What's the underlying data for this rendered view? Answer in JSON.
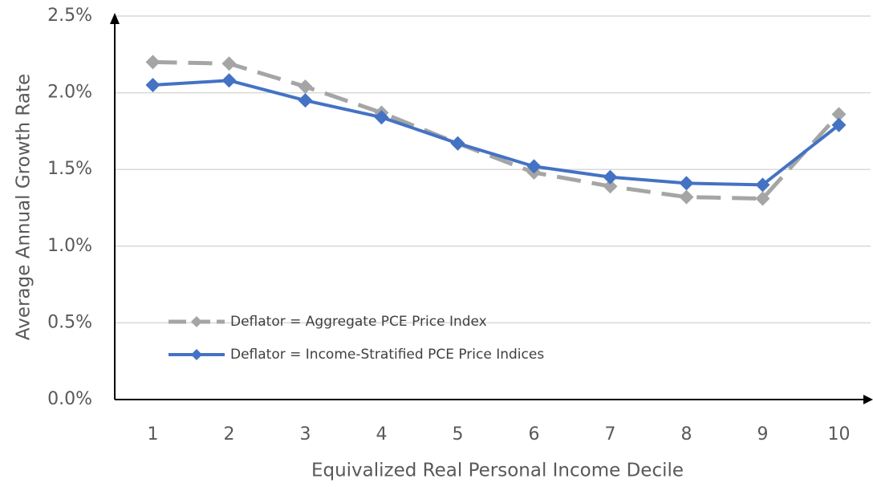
{
  "chart_data": {
    "type": "line",
    "xlabel": "Equivalized Real Personal Income Decile",
    "ylabel": "Average Annual Growth Rate",
    "categories": [
      "1",
      "2",
      "3",
      "4",
      "5",
      "6",
      "7",
      "8",
      "9",
      "10"
    ],
    "series": [
      {
        "name": "Deflator = Aggregate PCE Price Index",
        "color": "#a5a5a5",
        "dashed": true,
        "values": [
          2.2,
          2.19,
          2.04,
          1.87,
          1.67,
          1.48,
          1.39,
          1.32,
          1.31,
          1.86
        ]
      },
      {
        "name": "Deflator = Income-Stratified PCE Price Indices",
        "color": "#4472c4",
        "dashed": false,
        "values": [
          2.05,
          2.08,
          1.95,
          1.84,
          1.67,
          1.52,
          1.45,
          1.41,
          1.4,
          1.79
        ]
      }
    ],
    "ylim": [
      0,
      2.5
    ],
    "yticks": [
      {
        "value": 0,
        "label": "0.0%"
      },
      {
        "value": 0.5,
        "label": "0.5%"
      },
      {
        "value": 1,
        "label": "1.0%"
      },
      {
        "value": 1.5,
        "label": "1.5%"
      },
      {
        "value": 2,
        "label": "2.0%"
      },
      {
        "value": 2.5,
        "label": "2.5%"
      }
    ],
    "grid": true
  }
}
